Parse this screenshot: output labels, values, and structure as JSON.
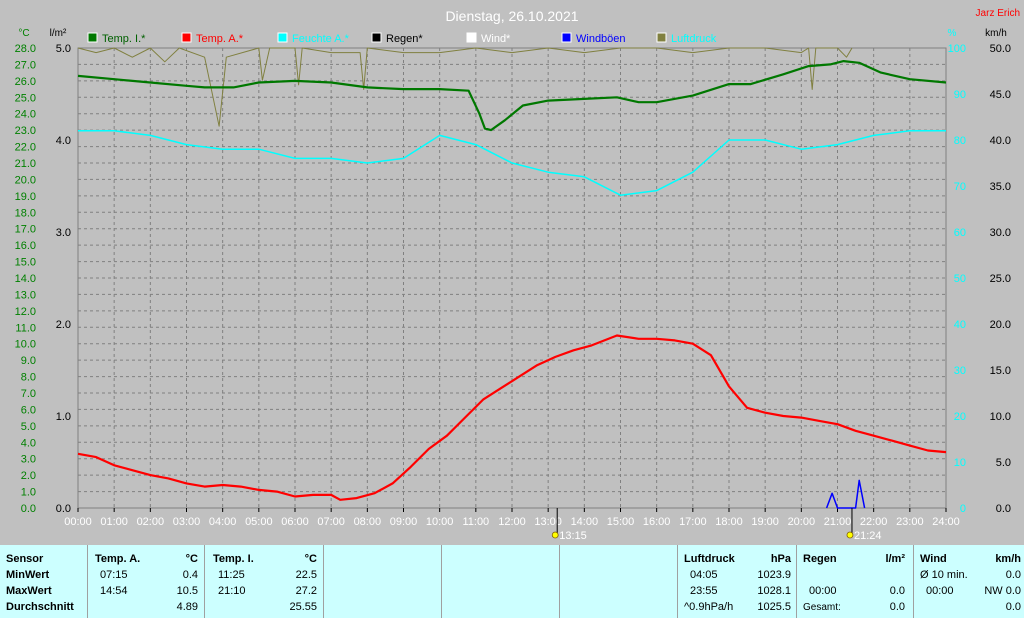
{
  "title": "Dienstag, 26.10.2021",
  "author": "Jarz Erich",
  "colors": {
    "bg": "#c0c0c0",
    "plot": "#c0c0c0",
    "grid": "#808080",
    "temp_in": "#007800",
    "temp_out": "#ff0000",
    "humidity": "#00ffff",
    "rain": "#000000",
    "wind": "#ffffff",
    "gust": "#0000ff",
    "pressure": "#808040"
  },
  "axes": {
    "left_unit": "°C",
    "rain_unit": "l/m²",
    "right_pct_unit": "%",
    "right_kmh_unit": "km/h",
    "temp_ticks": [
      "28.0",
      "27.0",
      "26.0",
      "25.0",
      "24.0",
      "23.0",
      "22.0",
      "21.0",
      "20.0",
      "19.0",
      "18.0",
      "17.0",
      "16.0",
      "15.0",
      "14.0",
      "13.0",
      "12.0",
      "11.0",
      "10.0",
      "9.0",
      "8.0",
      "7.0",
      "6.0",
      "5.0",
      "4.0",
      "3.0",
      "2.0",
      "1.0",
      "0.0"
    ],
    "rain_ticks": [
      "5.0",
      "4.0",
      "3.0",
      "2.0",
      "1.0",
      "0.0"
    ],
    "pct_ticks": [
      "100",
      "90",
      "80",
      "70",
      "60",
      "50",
      "40",
      "30",
      "20",
      "10",
      "0"
    ],
    "kmh_ticks": [
      "50.0",
      "45.0",
      "40.0",
      "35.0",
      "30.0",
      "25.0",
      "20.0",
      "15.0",
      "10.0",
      "5.0",
      "0.0"
    ],
    "time_ticks": [
      "00:00",
      "01:00",
      "02:00",
      "03:00",
      "04:00",
      "05:00",
      "06:00",
      "07:00",
      "08:00",
      "09:00",
      "10:00",
      "11:00",
      "12:00",
      "13:00",
      "14:00",
      "15:00",
      "16:00",
      "17:00",
      "18:00",
      "19:00",
      "20:00",
      "21:00",
      "22:00",
      "23:00",
      "24:00"
    ],
    "sunrise": "13:15",
    "sunset": "21:24"
  },
  "legend": [
    {
      "label": "Temp. I.*",
      "color": "#007800"
    },
    {
      "label": "Temp. A.*",
      "color": "#ff0000"
    },
    {
      "label": "Feuchte A.*",
      "color": "#00ffff"
    },
    {
      "label": "Regen*",
      "color": "#000000"
    },
    {
      "label": "Wind*",
      "color": "#ffffff"
    },
    {
      "label": "Windböen",
      "color": "#0000ff"
    },
    {
      "label": "Luftdruck",
      "color": "#808040"
    }
  ],
  "chart_data": {
    "type": "line",
    "title": "Dienstag, 26.10.2021",
    "x_unit": "hours",
    "temp_range": [
      0,
      28
    ],
    "pct_range": [
      0,
      100
    ],
    "kmh_range": [
      0,
      50
    ],
    "series": [
      {
        "name": "Temp. I.*",
        "axis": "temp",
        "color": "#007800",
        "points": [
          [
            0,
            26.3
          ],
          [
            1,
            26.1
          ],
          [
            2,
            25.9
          ],
          [
            3,
            25.7
          ],
          [
            3.5,
            25.6
          ],
          [
            4.3,
            25.6
          ],
          [
            5,
            25.9
          ],
          [
            6,
            26.0
          ],
          [
            7,
            25.9
          ],
          [
            8,
            25.6
          ],
          [
            9,
            25.5
          ],
          [
            10,
            25.5
          ],
          [
            10.8,
            25.4
          ],
          [
            11.1,
            24.0
          ],
          [
            11.25,
            23.1
          ],
          [
            11.42,
            23.0
          ],
          [
            11.8,
            23.6
          ],
          [
            12.3,
            24.5
          ],
          [
            13,
            24.8
          ],
          [
            14,
            24.9
          ],
          [
            14.9,
            25.0
          ],
          [
            15.5,
            24.7
          ],
          [
            16,
            24.7
          ],
          [
            17,
            25.1
          ],
          [
            18,
            25.8
          ],
          [
            18.6,
            25.8
          ],
          [
            19.5,
            26.4
          ],
          [
            20.2,
            26.9
          ],
          [
            20.8,
            27.0
          ],
          [
            21.17,
            27.2
          ],
          [
            21.6,
            27.1
          ],
          [
            22.2,
            26.5
          ],
          [
            23,
            26.1
          ],
          [
            24,
            25.9
          ]
        ]
      },
      {
        "name": "Temp. A.*",
        "axis": "temp",
        "color": "#ff0000",
        "points": [
          [
            0,
            3.3
          ],
          [
            0.5,
            3.1
          ],
          [
            1,
            2.6
          ],
          [
            1.5,
            2.3
          ],
          [
            2,
            2.0
          ],
          [
            2.5,
            1.8
          ],
          [
            3,
            1.5
          ],
          [
            3.5,
            1.3
          ],
          [
            4,
            1.4
          ],
          [
            4.5,
            1.3
          ],
          [
            5,
            1.1
          ],
          [
            5.5,
            1.0
          ],
          [
            6,
            0.7
          ],
          [
            6.5,
            0.8
          ],
          [
            7,
            0.8
          ],
          [
            7.25,
            0.5
          ],
          [
            7.7,
            0.6
          ],
          [
            8.2,
            0.9
          ],
          [
            8.7,
            1.5
          ],
          [
            9.2,
            2.5
          ],
          [
            9.7,
            3.6
          ],
          [
            10.2,
            4.4
          ],
          [
            10.7,
            5.5
          ],
          [
            11.2,
            6.6
          ],
          [
            11.7,
            7.3
          ],
          [
            12.2,
            8.0
          ],
          [
            12.7,
            8.7
          ],
          [
            13.2,
            9.2
          ],
          [
            13.7,
            9.6
          ],
          [
            14.2,
            9.9
          ],
          [
            14.9,
            10.5
          ],
          [
            15.5,
            10.3
          ],
          [
            16,
            10.3
          ],
          [
            16.5,
            10.2
          ],
          [
            17,
            10.0
          ],
          [
            17.5,
            9.3
          ],
          [
            18,
            7.4
          ],
          [
            18.5,
            6.1
          ],
          [
            19,
            5.8
          ],
          [
            19.5,
            5.6
          ],
          [
            20,
            5.5
          ],
          [
            20.5,
            5.3
          ],
          [
            21,
            5.1
          ],
          [
            21.5,
            4.7
          ],
          [
            22,
            4.4
          ],
          [
            22.5,
            4.1
          ],
          [
            23,
            3.8
          ],
          [
            23.5,
            3.5
          ],
          [
            24,
            3.4
          ]
        ]
      },
      {
        "name": "Feuchte A.*",
        "axis": "pct",
        "color": "#00ffff",
        "points": [
          [
            0,
            82
          ],
          [
            1,
            82
          ],
          [
            2,
            81
          ],
          [
            3,
            79
          ],
          [
            4,
            78
          ],
          [
            5,
            78
          ],
          [
            6,
            76
          ],
          [
            7,
            76
          ],
          [
            8,
            75
          ],
          [
            9,
            76
          ],
          [
            10,
            81
          ],
          [
            11,
            79
          ],
          [
            12,
            75
          ],
          [
            13,
            73
          ],
          [
            14,
            72
          ],
          [
            15,
            68
          ],
          [
            16,
            69
          ],
          [
            17,
            73
          ],
          [
            18,
            80
          ],
          [
            19,
            80
          ],
          [
            20,
            78
          ],
          [
            21,
            79
          ],
          [
            22,
            81
          ],
          [
            23,
            82
          ],
          [
            24,
            82
          ]
        ]
      },
      {
        "name": "Windböen",
        "axis": "kmh",
        "color": "#0000ff",
        "points": [
          [
            20.7,
            0
          ],
          [
            20.85,
            1.6
          ],
          [
            21.0,
            0
          ],
          [
            21.5,
            0
          ],
          [
            21.6,
            3.0
          ],
          [
            21.75,
            0
          ]
        ]
      },
      {
        "name": "Luftdruck",
        "axis": "pct",
        "color": "#808040",
        "points": [
          [
            0,
            100
          ],
          [
            0.5,
            99
          ],
          [
            1,
            100
          ],
          [
            1.5,
            98
          ],
          [
            2,
            100
          ],
          [
            2.4,
            97
          ],
          [
            2.8,
            100
          ],
          [
            3.5,
            98
          ],
          [
            3.9,
            83
          ],
          [
            4.1,
            98
          ],
          [
            5,
            100
          ],
          [
            5.1,
            93
          ],
          [
            5.3,
            100
          ],
          [
            6,
            100
          ],
          [
            6.1,
            92
          ],
          [
            6.2,
            100
          ],
          [
            7,
            99
          ],
          [
            7.8,
            99
          ],
          [
            7.9,
            91
          ],
          [
            8,
            100
          ],
          [
            9,
            99
          ],
          [
            10,
            99
          ],
          [
            11,
            100
          ],
          [
            12,
            99
          ],
          [
            13,
            100
          ],
          [
            14,
            99
          ],
          [
            15,
            100
          ],
          [
            16,
            100
          ],
          [
            17,
            99
          ],
          [
            18,
            100
          ],
          [
            19,
            100
          ],
          [
            20,
            99
          ],
          [
            20.2,
            100
          ],
          [
            20.3,
            91
          ],
          [
            20.4,
            100
          ],
          [
            21,
            100
          ],
          [
            21.25,
            98
          ],
          [
            21.4,
            100
          ]
        ]
      }
    ]
  },
  "panel": {
    "sensor": {
      "header": "Sensor",
      "rows": [
        "MinWert",
        "MaxWert",
        "Durchschnitt"
      ]
    },
    "temp_a": {
      "header": "Temp. A.",
      "unit": "°C",
      "rows": [
        [
          "07:15",
          "0.4"
        ],
        [
          "14:54",
          "10.5"
        ],
        [
          "",
          "4.89"
        ]
      ]
    },
    "temp_i": {
      "header": "Temp. I.",
      "unit": "°C",
      "rows": [
        [
          "11:25",
          "22.5"
        ],
        [
          "21:10",
          "27.2"
        ],
        [
          "",
          "25.55"
        ]
      ]
    },
    "pressure": {
      "header": "Luftdruck",
      "unit": "hPa",
      "rows": [
        [
          "04:05",
          "1023.9"
        ],
        [
          "23:55",
          "1028.1"
        ],
        [
          "^0.9hPa/h",
          "1025.5"
        ]
      ]
    },
    "rain": {
      "header": "Regen",
      "unit": "l/m²",
      "rows": [
        [
          "",
          ""
        ],
        [
          "00:00",
          "0.0"
        ],
        [
          "Gesamt:",
          "0.0"
        ]
      ]
    },
    "wind": {
      "header": "Wind",
      "unit": "km/h",
      "rows": [
        [
          "Ø 10 min.",
          "0.0"
        ],
        [
          "00:00",
          "NW 0.0"
        ],
        [
          "",
          "0.0"
        ]
      ]
    }
  }
}
